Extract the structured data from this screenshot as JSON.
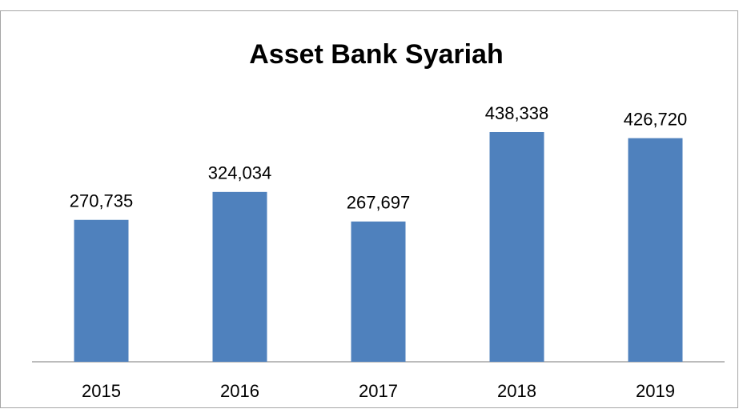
{
  "chart_data": {
    "type": "bar",
    "title": "Asset Bank Syariah",
    "categories": [
      "2015",
      "2016",
      "2017",
      "2018",
      "2019"
    ],
    "values": [
      270735,
      324034,
      267697,
      438338,
      426720
    ],
    "value_labels": [
      "270,735",
      "324,034",
      "267,697",
      "438,338",
      "426,720"
    ],
    "color": "#4f81bd"
  }
}
